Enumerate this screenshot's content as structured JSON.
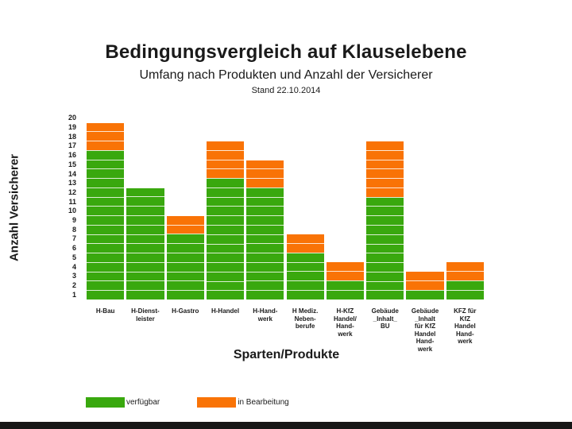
{
  "chart_data": {
    "type": "bar",
    "stacked": true,
    "title": "Bedingungsvergleich auf Klauselebene",
    "subtitle": "Umfang nach Produkten und Anzahl der Versicherer",
    "date_note": "Stand 22.10.2014",
    "xlabel": "Sparten/Produkte",
    "ylabel": "Anzahl Versicherer",
    "ylim": [
      0,
      20
    ],
    "yticks": [
      1,
      2,
      3,
      4,
      5,
      6,
      7,
      8,
      9,
      10,
      11,
      12,
      13,
      14,
      15,
      16,
      17,
      18,
      19,
      20
    ],
    "grid": false,
    "legend_position": "bottom-left",
    "categories": [
      "H-Bau",
      "H-Dienstleister",
      "H-Gastro",
      "H-Handel",
      "H-Handwerk",
      "H Mediz. Nebenberufe",
      "H-KfZ Handel/Handwerk",
      "Gebäude _Inhalt_ BU",
      "Gebäude _Inhalt für KfZ Handel Handwerk",
      "KFZ für KfZ Handel Handwerk"
    ],
    "category_label_lines": [
      [
        "H-Bau"
      ],
      [
        "H-Dienst-",
        "leister"
      ],
      [
        "H-Gastro"
      ],
      [
        "H-Handel"
      ],
      [
        "H-Hand-",
        "werk"
      ],
      [
        "H Mediz.",
        "Neben-",
        "berufe"
      ],
      [
        "H-KfZ",
        "Handel/",
        "Hand-",
        "werk"
      ],
      [
        "Gebäude",
        "_Inhalt_",
        "BU"
      ],
      [
        "Gebäude",
        "_Inhalt",
        "für KfZ",
        "Handel",
        "Hand-",
        "werk"
      ],
      [
        "KFZ für",
        "KfZ",
        "Handel",
        "Hand-",
        "werk"
      ]
    ],
    "series": [
      {
        "name": "verfügbar",
        "color": "#39a80e",
        "values": [
          16,
          12,
          7,
          13,
          12,
          5,
          2,
          11,
          1,
          2
        ]
      },
      {
        "name": "in Bearbeitung",
        "color": "#f97306",
        "values": [
          3,
          0,
          2,
          4,
          3,
          2,
          2,
          6,
          2,
          2
        ]
      }
    ],
    "totals": [
      19,
      12,
      9,
      17,
      15,
      7,
      4,
      17,
      3,
      4
    ]
  }
}
